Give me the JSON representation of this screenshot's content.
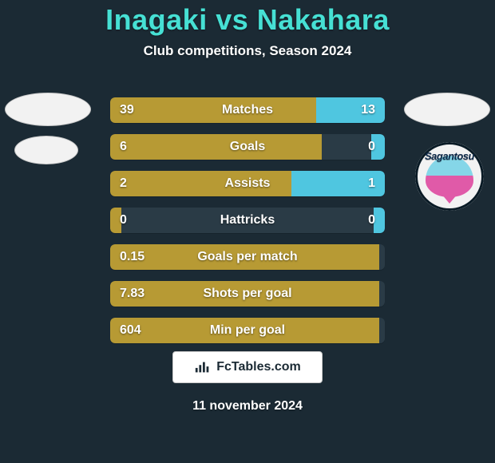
{
  "background_color": "#1b2a34",
  "title": {
    "text": "Inagaki vs Nakahara",
    "color": "#46e0d4",
    "fontsize": 36
  },
  "subtitle": {
    "text": "Club competitions, Season 2024",
    "color": "#ffffff",
    "fontsize": 17
  },
  "badges": {
    "ellipse_fill": "#f2f2f2",
    "ellipse_stroke": "#c9c9c9"
  },
  "club_logo": {
    "bg": "#f2f2f2",
    "ring_border": "#0a1b26",
    "inner_top": "#85d6e8",
    "inner_bottom": "#e05aa8",
    "point_color": "#e05aa8",
    "word": "Sagantosu",
    "word_color": "#0e2a4a",
    "word_fontsize": 13
  },
  "stats": {
    "track_color": "#2a3b46",
    "left_color": "#b79a34",
    "right_color": "#4fc6e0",
    "text_color": "#ffffff",
    "value_fontsize": 16,
    "label_fontsize": 16,
    "rows": [
      {
        "label": "Matches",
        "left": "39",
        "right": "13",
        "left_pct": 75,
        "right_pct": 25
      },
      {
        "label": "Goals",
        "left": "6",
        "right": "0",
        "left_pct": 77,
        "right_pct": 5
      },
      {
        "label": "Assists",
        "left": "2",
        "right": "1",
        "left_pct": 66,
        "right_pct": 34
      },
      {
        "label": "Hattricks",
        "left": "0",
        "right": "0",
        "left_pct": 4,
        "right_pct": 4
      },
      {
        "label": "Goals per match",
        "left": "0.15",
        "right": "",
        "left_pct": 98,
        "right_pct": 0
      },
      {
        "label": "Shots per goal",
        "left": "7.83",
        "right": "",
        "left_pct": 98,
        "right_pct": 0
      },
      {
        "label": "Min per goal",
        "left": "604",
        "right": "",
        "left_pct": 98,
        "right_pct": 0
      }
    ]
  },
  "footer": {
    "bg": "#ffffff",
    "border": "#c9c9c9",
    "text": "FcTables.com",
    "text_color": "#1b2a34",
    "fontsize": 16,
    "icon_color": "#1b2a34"
  },
  "date": {
    "text": "11 november 2024",
    "color": "#ffffff",
    "fontsize": 16
  }
}
